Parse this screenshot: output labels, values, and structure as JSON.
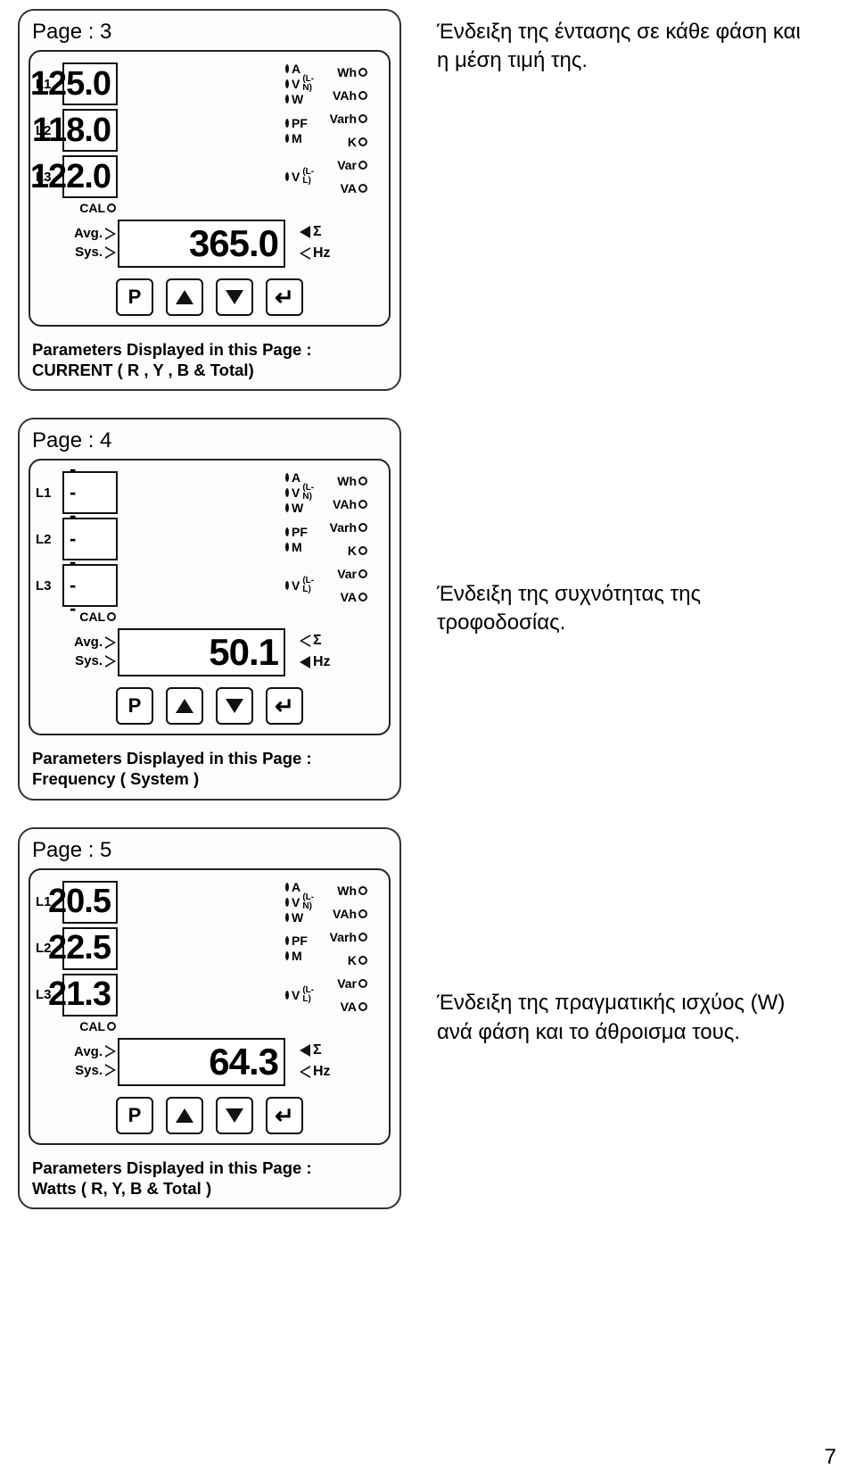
{
  "footer_page_number": "7",
  "panels": [
    {
      "page_label": "Page : 3",
      "caption": "Ένδειξη της έντασης σε κάθε φάση και η μέση τιμή της.",
      "caption_align": "top",
      "highlighted_right_index": 0,
      "sum_highlight": "sigma",
      "left_rows": [
        {
          "phase": "L1",
          "a": "Wh",
          "b": "VAh"
        },
        {
          "phase": "L2",
          "a": "Varh",
          "b": "K"
        },
        {
          "phase": "L3",
          "a": "Var",
          "b": "VA",
          "c": "CAL"
        }
      ],
      "right_labels": [
        "A",
        "V (L-N)",
        "W",
        "PF",
        "M",
        "V (L-L)"
      ],
      "disp": [
        "125.0",
        "118.0",
        "122.0"
      ],
      "disp_mode": "digits",
      "sum": "365.0",
      "avg_label": "Avg.",
      "sys_label": "Sys.",
      "sigma": "Σ",
      "hz": "Hz",
      "buttons": [
        "P",
        "▲",
        "▼",
        "↵"
      ],
      "param_text": "Parameters Displayed in this Page :\nCURRENT ( R , Y , B & Total)"
    },
    {
      "page_label": "Page : 4",
      "caption": "Ένδειξη της συχνότητας της τροφοδοσίας.",
      "caption_align": "center",
      "highlighted_right_index": -1,
      "sum_highlight": "hz",
      "left_rows": [
        {
          "phase": "L1",
          "a": "Wh",
          "b": "VAh"
        },
        {
          "phase": "L2",
          "a": "Varh",
          "b": "K"
        },
        {
          "phase": "L3",
          "a": "Var",
          "b": "VA",
          "c": "CAL"
        }
      ],
      "right_labels": [
        "A",
        "V (L-N)",
        "W",
        "PF",
        "M",
        "V (L-L)"
      ],
      "disp": [
        "- - -",
        "- - -",
        "- - -"
      ],
      "disp_mode": "dashes",
      "sum": "50.1",
      "avg_label": "Avg.",
      "sys_label": "Sys.",
      "sigma": "Σ",
      "hz": "Hz",
      "buttons": [
        "P",
        "▲",
        "▼",
        "↵"
      ],
      "param_text": "Parameters Displayed in this Page :\nFrequency ( System )"
    },
    {
      "page_label": "Page : 5",
      "caption": "Ένδειξη της πραγματικής ισχύος (W) ανά φάση και το άθροισμα τους.",
      "caption_align": "center",
      "highlighted_right_index": 2,
      "sum_highlight": "sigma",
      "left_rows": [
        {
          "phase": "L1",
          "a": "Wh",
          "b": "VAh"
        },
        {
          "phase": "L2",
          "a": "Varh",
          "b": "K"
        },
        {
          "phase": "L3",
          "a": "Var",
          "b": "VA",
          "c": "CAL"
        }
      ],
      "right_labels": [
        "A",
        "V (L-N)",
        "W",
        "PF",
        "M",
        "V (L-L)"
      ],
      "disp": [
        "20.5",
        "22.5",
        "21.3"
      ],
      "disp_mode": "digits",
      "sum": "64.3",
      "avg_label": "Avg.",
      "sys_label": "Sys.",
      "sigma": "Σ",
      "hz": "Hz",
      "buttons": [
        "P",
        "▲",
        "▼",
        "↵"
      ],
      "param_text": "Parameters Displayed in this Page :\nWatts ( R, Y, B & Total )"
    }
  ]
}
